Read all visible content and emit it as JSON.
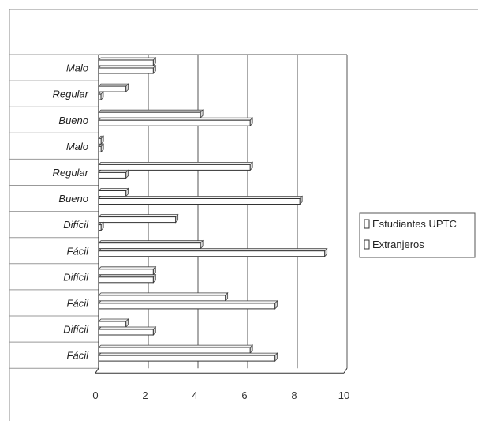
{
  "chart_data": {
    "type": "bar",
    "orientation": "horizontal",
    "categories": [
      "Malo",
      "Regular",
      "Bueno",
      "Malo",
      "Regular",
      "Bueno",
      "Difícil",
      "Fácil",
      "Difícil",
      "Fácil",
      "Difícil",
      "Fácil"
    ],
    "series": [
      {
        "name": "Estudiantes UPTC",
        "values": [
          2.2,
          1.1,
          4.1,
          0.1,
          6.1,
          1.1,
          3.1,
          4.1,
          2.2,
          5.1,
          1.1,
          6.1
        ]
      },
      {
        "name": "Extranjeros",
        "values": [
          2.2,
          0,
          6.1,
          0.1,
          1.1,
          8.1,
          0.1,
          9.1,
          2.2,
          7.1,
          2.2,
          7.1
        ]
      }
    ],
    "xlim": [
      0,
      10
    ],
    "xticks": [
      0,
      2,
      4,
      6,
      8,
      10
    ],
    "grid": true,
    "legend_position": "right",
    "colors": {
      "bar_fill": "#ffffff",
      "bar_edge": "#333333",
      "grid": "#555555"
    }
  }
}
